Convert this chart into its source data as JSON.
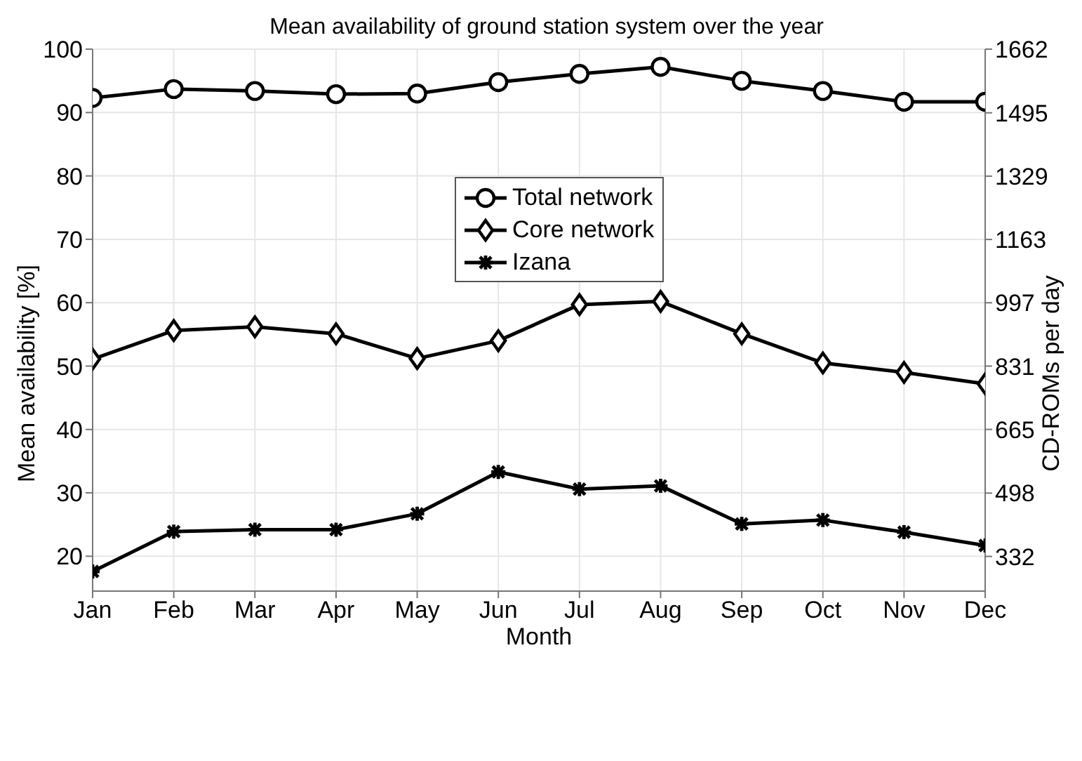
{
  "chart_data": {
    "type": "line",
    "title": "Mean availability of ground station system over the year",
    "xlabel": "Month",
    "ylabel": "Mean availability [%]",
    "y2label": "CD-ROMs per day",
    "categories": [
      "Jan",
      "Feb",
      "Mar",
      "Apr",
      "May",
      "Jun",
      "Jul",
      "Aug",
      "Sep",
      "Oct",
      "Nov",
      "Dec"
    ],
    "series": [
      {
        "name": "Total network",
        "color": "#000000",
        "marker": "circle",
        "values": [
          92.3,
          93.7,
          93.4,
          92.9,
          93.0,
          94.8,
          96.1,
          97.2,
          95.0,
          93.4,
          91.7,
          91.7
        ]
      },
      {
        "name": "Core network",
        "color": "#000000",
        "marker": "diamond",
        "values": [
          51.1,
          55.6,
          56.2,
          55.1,
          51.2,
          54.0,
          59.7,
          60.2,
          55.1,
          50.5,
          49.0,
          47.2
        ]
      },
      {
        "name": "Izana",
        "color": "#000000",
        "marker": "cross",
        "values": [
          17.6,
          23.9,
          24.2,
          24.2,
          26.7,
          33.3,
          30.6,
          31.1,
          25.1,
          25.7,
          23.8,
          21.7
        ]
      }
    ],
    "ylim": [
      14.5,
      100
    ],
    "yticks": [
      20,
      30,
      40,
      50,
      60,
      70,
      80,
      90,
      100
    ],
    "y2lim": [
      241,
      1662
    ],
    "y2ticks": [
      332,
      498,
      665,
      831,
      997,
      1163,
      1329,
      1495,
      1662
    ],
    "grid": true,
    "legend": "top",
    "line_style": "solid"
  }
}
